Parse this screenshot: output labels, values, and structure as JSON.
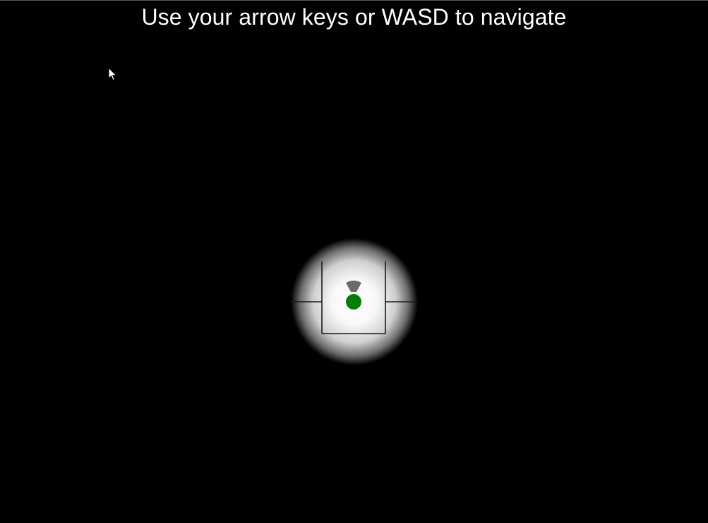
{
  "header": {
    "instruction": "Use your arrow keys or WASD to navigate"
  },
  "game": {
    "background_color": "#000000",
    "light_color": "#ffffff",
    "wall_color": "#000000",
    "player_color": "#008000",
    "facing_indicator_color": "#6a6a6a",
    "player_facing": "up"
  },
  "cursor": {
    "icon": "mouse-pointer-icon",
    "color": "#ffffff"
  }
}
